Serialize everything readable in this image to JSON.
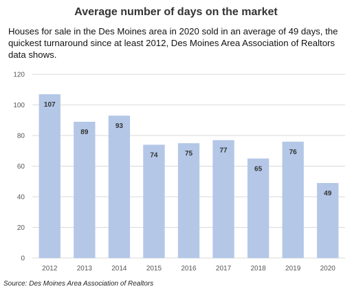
{
  "chart_data": {
    "type": "bar",
    "title": "Average number of days on the market",
    "subtitle": "Houses for sale in the Des Moines area in 2020 sold in an average of 49 days, the quickest turnaround since at least 2012, Des Moines Area Association of Realtors data shows.",
    "categories": [
      "2012",
      "2013",
      "2014",
      "2015",
      "2016",
      "2017",
      "2018",
      "2019",
      "2020"
    ],
    "values": [
      107,
      89,
      93,
      74,
      75,
      77,
      65,
      76,
      49
    ],
    "xlabel": "",
    "ylabel": "",
    "ylim": [
      0,
      120
    ],
    "yticks": [
      0,
      20,
      40,
      60,
      80,
      100,
      120
    ],
    "grid": true,
    "bar_color": "#b4c7e7",
    "grid_color": "#d9d9d9"
  },
  "source": "Source: Des Moines Area Association of Realtors"
}
